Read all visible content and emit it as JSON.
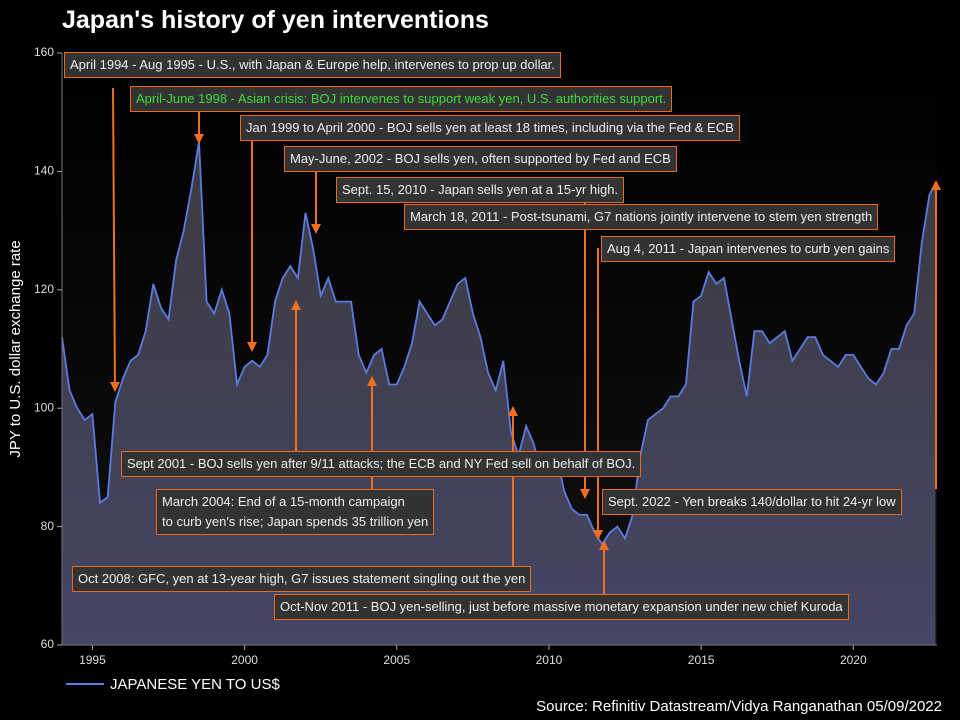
{
  "chart_data": {
    "type": "area",
    "title": "Japan's history of yen interventions",
    "ylabel": "JPY to U.S. dollar exchange rate",
    "source": "Source: Refinitiv Datastream/Vidya Ranganathan 05/09/2022",
    "xlim": [
      1994,
      2022.75
    ],
    "xticks": [
      1995,
      2000,
      2005,
      2010,
      2015,
      2020
    ],
    "ylim": [
      60,
      160
    ],
    "yticks": [
      60,
      80,
      100,
      120,
      140,
      160
    ],
    "x": [
      1994.0,
      1994.25,
      1994.5,
      1994.75,
      1995.0,
      1995.25,
      1995.5,
      1995.75,
      1996.0,
      1996.25,
      1996.5,
      1996.75,
      1997.0,
      1997.25,
      1997.5,
      1997.75,
      1998.0,
      1998.25,
      1998.5,
      1998.75,
      1999.0,
      1999.25,
      1999.5,
      1999.75,
      2000.0,
      2000.25,
      2000.5,
      2000.75,
      2001.0,
      2001.25,
      2001.5,
      2001.75,
      2002.0,
      2002.25,
      2002.5,
      2002.75,
      2003.0,
      2003.25,
      2003.5,
      2003.75,
      2004.0,
      2004.25,
      2004.5,
      2004.75,
      2005.0,
      2005.25,
      2005.5,
      2005.75,
      2006.0,
      2006.25,
      2006.5,
      2006.75,
      2007.0,
      2007.25,
      2007.5,
      2007.75,
      2008.0,
      2008.25,
      2008.5,
      2008.75,
      2009.0,
      2009.25,
      2009.5,
      2009.75,
      2010.0,
      2010.25,
      2010.5,
      2010.75,
      2011.0,
      2011.25,
      2011.5,
      2011.75,
      2012.0,
      2012.25,
      2012.5,
      2012.75,
      2013.0,
      2013.25,
      2013.5,
      2013.75,
      2014.0,
      2014.25,
      2014.5,
      2014.75,
      2015.0,
      2015.25,
      2015.5,
      2015.75,
      2016.0,
      2016.25,
      2016.5,
      2016.75,
      2017.0,
      2017.25,
      2017.5,
      2017.75,
      2018.0,
      2018.25,
      2018.5,
      2018.75,
      2019.0,
      2019.25,
      2019.5,
      2019.75,
      2020.0,
      2020.25,
      2020.5,
      2020.75,
      2021.0,
      2021.25,
      2021.5,
      2021.75,
      2022.0,
      2022.25,
      2022.5,
      2022.7
    ],
    "series": [
      {
        "name": "JAPANESE YEN TO US$",
        "color": "#5b7be0",
        "values": [
          112,
          103,
          100,
          98,
          99,
          84,
          85,
          101,
          105,
          108,
          109,
          113,
          121,
          117,
          115,
          125,
          130,
          137,
          145,
          118,
          116,
          120,
          116,
          104,
          107,
          108,
          107,
          109,
          118,
          122,
          124,
          122,
          133,
          127,
          119,
          122,
          118,
          118,
          118,
          109,
          106,
          109,
          110,
          104,
          104,
          107,
          111,
          118,
          116,
          114,
          115,
          118,
          121,
          122,
          116,
          112,
          106,
          103,
          108,
          96,
          92,
          97,
          94,
          89,
          91,
          92,
          86,
          83,
          82,
          82,
          79,
          77,
          79,
          80,
          78,
          82,
          92,
          98,
          99,
          100,
          102,
          102,
          104,
          118,
          119,
          123,
          121,
          122,
          115,
          108,
          102,
          113,
          113,
          111,
          112,
          113,
          108,
          110,
          112,
          112,
          109,
          108,
          107,
          109,
          109,
          107,
          105,
          104,
          106,
          110,
          110,
          114,
          116,
          128,
          136,
          138
        ]
      }
    ],
    "annotations": [
      {
        "lines": [
          "April 1994 - Aug 1995 - U.S., with Japan & Europe help, intervenes to prop up dollar."
        ]
      },
      {
        "lines": [
          "April-June 1998 - Asian crisis: BOJ intervenes to support weak yen, U.S. authorities support."
        ],
        "color": "#3ddc3d"
      },
      {
        "lines": [
          "Jan 1999 to April 2000 - BOJ sells yen at least 18 times, including via the Fed & ECB"
        ]
      },
      {
        "lines": [
          "May-June, 2002 - BOJ sells yen, often supported by Fed and ECB"
        ]
      },
      {
        "lines": [
          "Sept. 15, 2010 - Japan sells yen at a 15-yr high."
        ]
      },
      {
        "lines": [
          "March 18, 2011 - Post-tsunami, G7 nations jointly intervene to stem yen strength"
        ]
      },
      {
        "lines": [
          "Aug 4, 2011 - Japan intervenes to curb yen gains"
        ]
      },
      {
        "lines": [
          "Sept 2001 - BOJ sells yen after 9/11 attacks; the ECB and NY Fed sell on behalf of BOJ."
        ]
      },
      {
        "lines": [
          "March 2004: End of a 15-month campaign",
          "to curb yen's rise; Japan spends 35 trillion yen"
        ]
      },
      {
        "lines": [
          "Sept. 2022 - Yen breaks 140/dollar to hit 24-yr low"
        ]
      },
      {
        "lines": [
          "Oct 2008: GFC, yen at 13-year high, G7 issues statement singling out the yen"
        ]
      },
      {
        "lines": [
          "Oct-Nov 2011 - BOJ yen-selling, just before massive monetary expansion under new chief Kuroda"
        ]
      }
    ]
  }
}
